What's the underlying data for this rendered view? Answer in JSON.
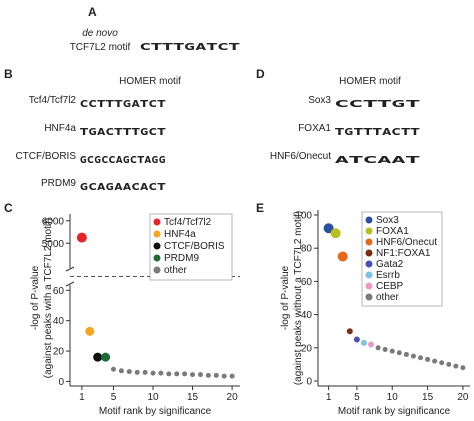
{
  "panels": {
    "a": "A",
    "b": "B",
    "c": "C",
    "d": "D",
    "e": "E"
  },
  "motif_a": {
    "label_1": "de novo",
    "label_2": "TCF7L2 motif",
    "letters": [
      "C",
      "T",
      "T",
      "T",
      "G",
      "A",
      "T",
      "C",
      "T"
    ]
  },
  "motif_b": {
    "title": "HOMER motif",
    "rows": [
      {
        "name": "Tcf4/Tcf7l2",
        "letters": [
          "C",
          "C",
          "T",
          "T",
          "T",
          "G",
          "A",
          "T",
          "C",
          "T"
        ]
      },
      {
        "name": "HNF4a",
        "letters": [
          "T",
          "G",
          "A",
          "C",
          "T",
          "T",
          "T",
          "G",
          "C",
          "T"
        ]
      },
      {
        "name": "CTCF/BORIS",
        "letters": [
          "G",
          "C",
          "G",
          "C",
          "C",
          "A",
          "G",
          "C",
          "T",
          "A",
          "G",
          "G"
        ]
      },
      {
        "name": "PRDM9",
        "letters": [
          "G",
          "C",
          "A",
          "G",
          "A",
          "A",
          "C",
          "A",
          "C",
          "T"
        ]
      }
    ]
  },
  "motif_d": {
    "title": "HOMER motif",
    "rows": [
      {
        "name": "Sox3",
        "letters": [
          "C",
          "C",
          "T",
          "T",
          "G",
          "T"
        ]
      },
      {
        "name": "FOXA1",
        "letters": [
          "T",
          "G",
          "T",
          "T",
          "T",
          "A",
          "C",
          "T",
          "T"
        ]
      },
      {
        "name": "HNF6/Onecut",
        "letters": [
          "A",
          "T",
          "C",
          "A",
          "A",
          "T"
        ]
      }
    ]
  },
  "chart_data": [
    {
      "type": "scatter",
      "ylabel": "-log of P-value",
      "ylabel_2": "(against peaks with a TCF7L2 motif)",
      "xlabel": "Motif rank by significance",
      "xlim": [
        -0.5,
        21
      ],
      "xticks": [
        1,
        5,
        10,
        15,
        20
      ],
      "ylim": [
        -3,
        63.5
      ],
      "yticks": [
        0,
        20,
        40,
        60
      ],
      "ylim_upper": [
        3900,
        6300
      ],
      "yticks_upper": [
        5000,
        6000
      ],
      "axis_break": true,
      "legend": "upper right",
      "series": [
        {
          "name": "Tcf4/Tcf7l2",
          "color": "#e3262a",
          "size": 5,
          "x": [
            1
          ],
          "values": [
            5250
          ]
        },
        {
          "name": "HNF4a",
          "color": "#f5a623",
          "size": 4.5,
          "x": [
            2
          ],
          "values": [
            33
          ]
        },
        {
          "name": "CTCF/BORIS",
          "color": "#111111",
          "size": 4.5,
          "x": [
            3
          ],
          "values": [
            16
          ]
        },
        {
          "name": "PRDM9",
          "color": "#1f6b35",
          "size": 4.5,
          "x": [
            4
          ],
          "values": [
            16
          ]
        },
        {
          "name": "other",
          "color": "#7a7a7a",
          "size": 2.5,
          "x": [
            5,
            6,
            7,
            8,
            9,
            10,
            11,
            12,
            13,
            14,
            15,
            16,
            17,
            18,
            19,
            20
          ],
          "values": [
            8,
            7,
            6.5,
            6,
            6,
            5.5,
            5.5,
            5,
            5,
            5,
            4.5,
            4.5,
            4,
            4,
            3.5,
            3.5
          ]
        }
      ]
    },
    {
      "type": "scatter",
      "ylabel": "-log of P-value",
      "ylabel_2": "(against peaks without a TCF7L2 motif)",
      "xlabel": "Motif rank by significance",
      "xlim": [
        -0.5,
        21
      ],
      "xticks": [
        1,
        5,
        10,
        15,
        20
      ],
      "ylim": [
        -3,
        103
      ],
      "yticks": [
        0,
        20,
        40,
        60,
        80,
        100
      ],
      "legend": "upper right",
      "series": [
        {
          "name": "Sox3",
          "color": "#2b4fa0",
          "size": 5,
          "x": [
            1
          ],
          "values": [
            92
          ]
        },
        {
          "name": "FOXA1",
          "color": "#b5c11f",
          "size": 5,
          "x": [
            2
          ],
          "values": [
            89
          ]
        },
        {
          "name": "HNF6/Onecut",
          "color": "#e8671c",
          "size": 5,
          "x": [
            3
          ],
          "values": [
            75
          ]
        },
        {
          "name": "NF1:FOXA1",
          "color": "#7a2e12",
          "size": 3,
          "x": [
            4
          ],
          "values": [
            30
          ]
        },
        {
          "name": "Gata2",
          "color": "#4a4fb8",
          "size": 3,
          "x": [
            5
          ],
          "values": [
            25
          ]
        },
        {
          "name": "Esrrb",
          "color": "#7ec3e6",
          "size": 3,
          "x": [
            6
          ],
          "values": [
            23
          ]
        },
        {
          "name": "CEBP",
          "color": "#ee9ac0",
          "size": 3,
          "x": [
            7
          ],
          "values": [
            22
          ]
        },
        {
          "name": "other",
          "color": "#7a7a7a",
          "size": 2.5,
          "x": [
            8,
            9,
            10,
            11,
            12,
            13,
            14,
            15,
            16,
            17,
            18,
            19,
            20
          ],
          "values": [
            20,
            19,
            18,
            17,
            16,
            15,
            14,
            13,
            12,
            11,
            10,
            9,
            8
          ]
        }
      ]
    }
  ]
}
